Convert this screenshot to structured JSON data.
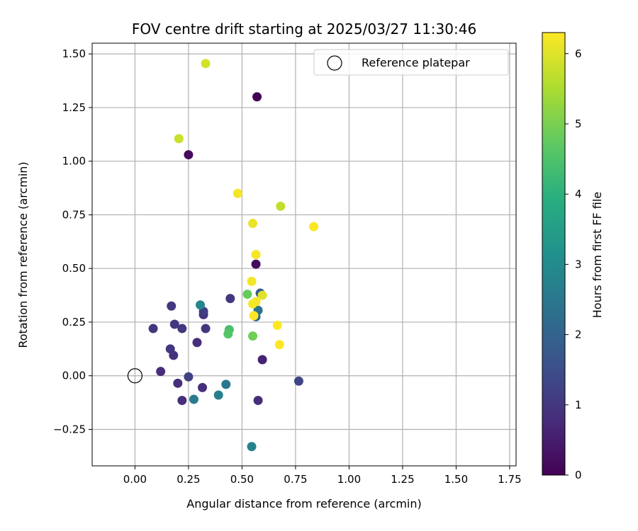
{
  "chart_data": {
    "type": "scatter",
    "title": "FOV centre drift starting at 2025/03/27 11:30:46",
    "xlabel": "Angular distance from reference (arcmin)",
    "ylabel": "Rotation from reference (arcmin)",
    "xlim": [
      -0.2,
      1.78
    ],
    "ylim": [
      -0.42,
      1.55
    ],
    "xticks": [
      0.0,
      0.25,
      0.5,
      0.75,
      1.0,
      1.25,
      1.5,
      1.75
    ],
    "xtick_labels": [
      "0.00",
      "0.25",
      "0.50",
      "0.75",
      "1.00",
      "1.25",
      "1.50",
      "1.75"
    ],
    "yticks": [
      -0.25,
      0.0,
      0.25,
      0.5,
      0.75,
      1.0,
      1.25,
      1.5
    ],
    "ytick_labels": [
      "−0.25",
      "0.00",
      "0.25",
      "0.50",
      "0.75",
      "1.00",
      "1.25",
      "1.50"
    ],
    "grid": true,
    "legend": {
      "position": "top-right",
      "entries": [
        {
          "label": "Reference platepar",
          "marker": "open-circle"
        }
      ]
    },
    "reference_point": {
      "x": 0.0,
      "y": 0.0
    },
    "colorbar": {
      "label": "Hours from first FF file",
      "colormap": "viridis",
      "range": [
        0,
        6.3
      ],
      "ticks": [
        0,
        1,
        2,
        3,
        4,
        5,
        6
      ],
      "tick_labels": [
        "0",
        "1",
        "2",
        "3",
        "4",
        "5",
        "6"
      ]
    },
    "points": [
      {
        "x": 0.57,
        "y": 1.3,
        "c": 0.05
      },
      {
        "x": 0.25,
        "y": 1.03,
        "c": 0.2
      },
      {
        "x": 0.565,
        "y": 0.52,
        "c": 0.2
      },
      {
        "x": 0.595,
        "y": 0.075,
        "c": 0.6
      },
      {
        "x": 0.12,
        "y": 0.02,
        "c": 0.8
      },
      {
        "x": 0.2,
        "y": -0.035,
        "c": 0.8
      },
      {
        "x": 0.315,
        "y": -0.055,
        "c": 0.8
      },
      {
        "x": 0.22,
        "y": -0.115,
        "c": 0.8
      },
      {
        "x": 0.575,
        "y": -0.115,
        "c": 0.8
      },
      {
        "x": 0.29,
        "y": 0.155,
        "c": 0.8
      },
      {
        "x": 0.18,
        "y": 0.095,
        "c": 0.9
      },
      {
        "x": 0.32,
        "y": 0.285,
        "c": 0.9
      },
      {
        "x": 0.165,
        "y": 0.125,
        "c": 1.0
      },
      {
        "x": 0.185,
        "y": 0.24,
        "c": 1.0
      },
      {
        "x": 0.085,
        "y": 0.22,
        "c": 1.0
      },
      {
        "x": 0.22,
        "y": 0.22,
        "c": 1.0
      },
      {
        "x": 0.33,
        "y": 0.22,
        "c": 1.0
      },
      {
        "x": 0.17,
        "y": 0.325,
        "c": 1.0
      },
      {
        "x": 0.445,
        "y": 0.36,
        "c": 1.0
      },
      {
        "x": 0.32,
        "y": 0.3,
        "c": 1.1
      },
      {
        "x": 0.25,
        "y": -0.005,
        "c": 1.2
      },
      {
        "x": 0.765,
        "y": -0.025,
        "c": 1.3
      },
      {
        "x": 0.585,
        "y": 0.385,
        "c": 1.8
      },
      {
        "x": 0.565,
        "y": 0.275,
        "c": 2.2
      },
      {
        "x": 0.575,
        "y": 0.305,
        "c": 2.4
      },
      {
        "x": 0.425,
        "y": -0.04,
        "c": 2.5
      },
      {
        "x": 0.275,
        "y": -0.11,
        "c": 2.6
      },
      {
        "x": 0.39,
        "y": -0.09,
        "c": 2.7
      },
      {
        "x": 0.545,
        "y": -0.33,
        "c": 2.8
      },
      {
        "x": 0.305,
        "y": 0.33,
        "c": 2.9
      },
      {
        "x": 0.44,
        "y": 0.215,
        "c": 4.4
      },
      {
        "x": 0.435,
        "y": 0.195,
        "c": 4.6
      },
      {
        "x": 0.525,
        "y": 0.38,
        "c": 4.8
      },
      {
        "x": 0.55,
        "y": 0.185,
        "c": 4.9
      },
      {
        "x": 0.68,
        "y": 0.79,
        "c": 5.7
      },
      {
        "x": 0.205,
        "y": 1.105,
        "c": 5.8
      },
      {
        "x": 0.33,
        "y": 1.455,
        "c": 5.9
      },
      {
        "x": 0.55,
        "y": 0.71,
        "c": 6.1
      },
      {
        "x": 0.48,
        "y": 0.85,
        "c": 6.2
      },
      {
        "x": 0.835,
        "y": 0.695,
        "c": 6.3
      },
      {
        "x": 0.565,
        "y": 0.565,
        "c": 6.2
      },
      {
        "x": 0.545,
        "y": 0.44,
        "c": 6.2
      },
      {
        "x": 0.595,
        "y": 0.375,
        "c": 6.0
      },
      {
        "x": 0.55,
        "y": 0.335,
        "c": 6.2
      },
      {
        "x": 0.565,
        "y": 0.345,
        "c": 6.2
      },
      {
        "x": 0.555,
        "y": 0.28,
        "c": 6.3
      },
      {
        "x": 0.665,
        "y": 0.235,
        "c": 6.3
      },
      {
        "x": 0.675,
        "y": 0.145,
        "c": 6.3
      }
    ]
  }
}
